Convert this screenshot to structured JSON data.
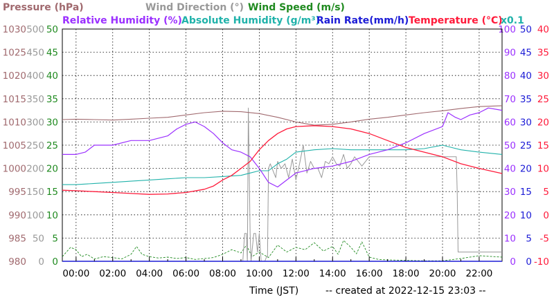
{
  "chart_data": {
    "type": "line",
    "created_label": "-- created at 2022-12-15 23:03 --",
    "xlabel": "Time (JST)",
    "x_ticks": [
      "00:00",
      "02:00",
      "04:00",
      "06:00",
      "08:00",
      "10:00",
      "12:00",
      "14:00",
      "16:00",
      "18:00",
      "20:00",
      "22:00"
    ],
    "x_range_hours": [
      -0.75,
      23.25
    ],
    "grid": true,
    "legend": {
      "row1": [
        {
          "key": "pressure",
          "label": "Pressure (hPa)",
          "color": "#a0696e"
        },
        {
          "key": "wind_dir",
          "label": "Wind Direction (°)",
          "color": "#999999"
        },
        {
          "key": "wind_speed",
          "label": "Wind Speed (m/s)",
          "color": "#1f8a1f"
        }
      ],
      "row2": [
        {
          "key": "rh",
          "label": "Relative Humidity (%)",
          "color": "#9b30ff"
        },
        {
          "key": "ah",
          "label": "Absolute Humidity (g/m³)",
          "color": "#20b2aa"
        },
        {
          "key": "rain",
          "label": "Rain Rate(mm/h)",
          "color": "#1c1cd6"
        },
        {
          "key": "temp",
          "label": "Temperature (°C)",
          "color": "#ff1a3a"
        }
      ],
      "ah_scale": "x0.1"
    },
    "axes": {
      "pressure": {
        "range": [
          980,
          1030
        ],
        "ticks": [
          "1030",
          "1025",
          "1020",
          "1015",
          "1010",
          "1005",
          "1000",
          "995",
          "990",
          "985",
          "980"
        ],
        "color": "#a0696e"
      },
      "wind_dir": {
        "range": [
          0,
          500
        ],
        "ticks": [
          "500",
          "450",
          "400",
          "350",
          "300",
          "250",
          "200",
          "150",
          "100",
          "50",
          "0"
        ],
        "color": "#999999"
      },
      "wind_speed": {
        "range": [
          0,
          50
        ],
        "ticks": [
          "50",
          "45",
          "40",
          "35",
          "30",
          "25",
          "20",
          "15",
          "10",
          "5",
          "0"
        ],
        "color": "#1f8a1f"
      },
      "rh": {
        "range": [
          0,
          100
        ],
        "ticks": [
          "100",
          "90",
          "80",
          "70",
          "60",
          "50",
          "40",
          "30",
          "20",
          "10",
          "0"
        ],
        "color": "#9b30ff"
      },
      "rain": {
        "range": [
          0,
          50
        ],
        "ticks": [
          "50",
          "45",
          "40",
          "35",
          "30",
          "25",
          "20",
          "15",
          "10",
          "5",
          "0"
        ],
        "color": "#1c1cd6"
      },
      "temp": {
        "range": [
          -10,
          40
        ],
        "ticks": [
          "40",
          "35",
          "30",
          "25",
          "20",
          "15",
          "10",
          "5",
          "0",
          "-5",
          "-10"
        ],
        "color": "#ff1a3a"
      }
    },
    "series": [
      {
        "key": "pressure",
        "axis": "pressure",
        "color": "#a0696e",
        "x": [
          -0.75,
          0,
          1,
          2,
          3,
          4,
          5,
          6,
          7,
          8,
          9,
          10,
          11,
          12,
          13,
          14,
          15,
          16,
          17,
          18,
          19,
          20,
          21,
          22,
          23.25
        ],
        "y": [
          1010.5,
          1010.6,
          1010.5,
          1010.4,
          1010.6,
          1010.8,
          1011.0,
          1011.5,
          1012.0,
          1012.3,
          1012.2,
          1011.8,
          1011.0,
          1010.0,
          1009.3,
          1009.5,
          1010.0,
          1010.6,
          1011.0,
          1011.5,
          1012.0,
          1012.4,
          1012.9,
          1013.3,
          1013.5
        ]
      },
      {
        "key": "wind_dir",
        "axis": "wind_dir",
        "color": "#999999",
        "x": [
          -0.75,
          8.9,
          9.0,
          9.1,
          9.2,
          9.3,
          9.35,
          9.4,
          9.5,
          9.55,
          9.7,
          9.8,
          9.9,
          10.0,
          10.1,
          10.2,
          10.3,
          10.4,
          10.45,
          10.5,
          10.6,
          10.7,
          10.9,
          11.0,
          11.2,
          11.4,
          11.6,
          11.8,
          12.0,
          12.2,
          12.4,
          12.6,
          12.8,
          13.0,
          13.2,
          13.4,
          13.6,
          13.8,
          14.0,
          14.2,
          14.4,
          14.6,
          14.8,
          15.0,
          15.2,
          15.4,
          15.6,
          16.0,
          18.0,
          20.0,
          20.1,
          20.2,
          20.7,
          20.75,
          20.8,
          20.85,
          21.0,
          22.0,
          23.25
        ],
        "y": [
          0,
          0,
          0,
          0,
          60,
          60,
          0,
          330,
          60,
          0,
          60,
          60,
          20,
          60,
          0,
          0,
          0,
          10,
          10,
          200,
          210,
          200,
          180,
          215,
          200,
          210,
          180,
          220,
          175,
          210,
          250,
          190,
          215,
          200,
          200,
          180,
          215,
          210,
          225,
          210,
          205,
          230,
          200,
          210,
          225,
          215,
          205,
          225,
          225,
          225,
          225,
          225,
          225,
          225,
          150,
          20,
          20,
          20,
          20
        ]
      },
      {
        "key": "wind_speed",
        "axis": "wind_speed",
        "color": "#1f8a1f",
        "x": [
          -0.75,
          -0.3,
          0,
          0.3,
          0.6,
          1,
          1.5,
          2,
          2.5,
          3,
          3.3,
          3.6,
          4,
          4.5,
          5,
          5.5,
          6,
          6.5,
          7,
          7.5,
          8,
          8.5,
          9,
          9.3,
          9.6,
          10,
          10.5,
          11,
          11.5,
          12,
          12.5,
          13,
          13.5,
          14,
          14.3,
          14.6,
          15,
          15.3,
          15.6,
          16,
          16.5,
          17,
          18,
          19,
          20,
          21,
          22,
          23.25
        ],
        "y": [
          1,
          3,
          2.5,
          1,
          1.5,
          0.5,
          1,
          0.8,
          0.5,
          1.5,
          3.2,
          1.5,
          1,
          0.7,
          0.9,
          0.6,
          0.8,
          0.4,
          0.6,
          0.8,
          1.5,
          2.5,
          1.8,
          3.5,
          1,
          2,
          0.8,
          3.5,
          2,
          3,
          2.5,
          4,
          2.2,
          3.2,
          1.5,
          4.5,
          3,
          1.6,
          4.2,
          0.9,
          0.4,
          0.3,
          0.2,
          0.1,
          0.1,
          0.6,
          1.2,
          0.9
        ]
      },
      {
        "key": "rh",
        "axis": "rh",
        "color": "#9b30ff",
        "x": [
          -0.75,
          0,
          0.5,
          1,
          2,
          3,
          4,
          5,
          5.5,
          6,
          6.5,
          7,
          7.5,
          8,
          8.5,
          9,
          9.5,
          10,
          10.5,
          11,
          11.5,
          12,
          13,
          14,
          15,
          16,
          17,
          18,
          19,
          20,
          20.3,
          20.7,
          21,
          21.5,
          22,
          22.5,
          23.25
        ],
        "y": [
          46,
          46,
          47,
          50,
          50,
          52,
          52,
          54,
          57,
          59,
          60,
          58,
          55,
          51,
          48,
          47,
          45,
          40,
          34,
          32,
          35,
          38,
          40,
          41,
          43,
          46,
          48,
          51,
          55,
          58,
          64,
          62,
          61,
          63,
          64,
          66,
          65
        ]
      },
      {
        "key": "ah",
        "axis": "rh",
        "color": "#20b2aa",
        "x": [
          -0.75,
          0,
          1,
          2,
          3,
          4,
          5,
          6,
          7,
          8,
          9,
          9.5,
          10,
          10.5,
          11,
          11.5,
          12,
          13,
          14,
          15,
          16,
          17,
          18,
          19,
          20,
          20.5,
          21,
          22,
          23.25
        ],
        "y": [
          33,
          33,
          33.5,
          34,
          34.5,
          35,
          35.5,
          36,
          36,
          36.5,
          37,
          38,
          39,
          39,
          42,
          44,
          47,
          48,
          48.5,
          48,
          48,
          48,
          48,
          48.5,
          50,
          49,
          48,
          47,
          46
        ]
      },
      {
        "key": "rain",
        "axis": "rain",
        "color": "#1c1cd6",
        "x": [
          -0.75,
          23.25
        ],
        "y": [
          0,
          0
        ]
      },
      {
        "key": "temp",
        "axis": "temp",
        "color": "#ff1a3a",
        "x": [
          -0.75,
          0,
          1,
          2,
          3,
          4,
          5,
          6,
          7,
          7.5,
          8,
          8.5,
          9,
          9.5,
          10,
          10.5,
          11,
          11.5,
          12,
          13,
          14,
          15,
          16,
          17,
          18,
          19,
          20,
          21,
          22,
          23.25
        ],
        "y": [
          5.3,
          5.2,
          5.0,
          4.8,
          4.6,
          4.4,
          4.5,
          4.8,
          5.5,
          6.2,
          7.5,
          8.5,
          10,
          11.5,
          14,
          16,
          17.5,
          18.5,
          19,
          19.2,
          19,
          18.5,
          17.5,
          16,
          14.5,
          13.5,
          12.5,
          11,
          10,
          8.9
        ]
      }
    ]
  }
}
